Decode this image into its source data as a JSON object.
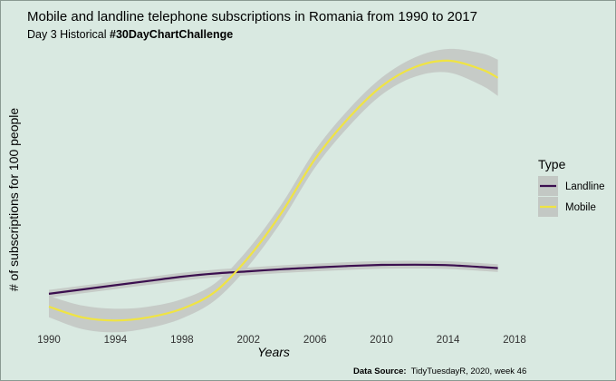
{
  "chart_data": {
    "type": "line",
    "title": "Mobile and landline telephone subscriptions in Romania from 1990 to 2017",
    "subtitle_prefix": "Day 3 Historical ",
    "subtitle_bold": "#30DayChartChallenge",
    "xlabel": "Years",
    "ylabel": "# of subscriptions for 100 people",
    "xlim": [
      1990,
      2017
    ],
    "ylim": [
      -10,
      130
    ],
    "x_ticks": [
      1990,
      1994,
      1998,
      2002,
      2006,
      2010,
      2014,
      2018
    ],
    "legend": {
      "title": "Type",
      "placement": "right"
    },
    "smoothing": "loess with confidence band",
    "series": [
      {
        "name": "Landline",
        "color": "#3b0f4f",
        "x": [
          1990,
          1992,
          1994,
          1996,
          1998,
          2000,
          2002,
          2004,
          2006,
          2008,
          2010,
          2012,
          2014,
          2016,
          2017
        ],
        "y": [
          10,
          12,
          14,
          16,
          18,
          19.5,
          20.5,
          21.5,
          22.3,
          23,
          23.5,
          23.6,
          23.4,
          22.5,
          22
        ]
      },
      {
        "name": "Mobile",
        "color": "#f0e442",
        "x": [
          1990,
          1992,
          1994,
          1996,
          1998,
          2000,
          2002,
          2004,
          2006,
          2008,
          2010,
          2012,
          2014,
          2016,
          2017
        ],
        "y": [
          4,
          -1,
          -2.5,
          -1,
          3,
          11,
          27,
          48,
          73,
          92,
          107,
          116,
          119,
          115,
          111
        ],
        "band": [
          5,
          5.5,
          5.5,
          5,
          4.5,
          4,
          4,
          4,
          4,
          4,
          4,
          4.5,
          5.5,
          7.5,
          8.5
        ]
      }
    ],
    "band_color": "#c3c8c4"
  },
  "caption": {
    "label": "Data Source:",
    "text": "TidyTuesdayR,  2020, week 46"
  }
}
